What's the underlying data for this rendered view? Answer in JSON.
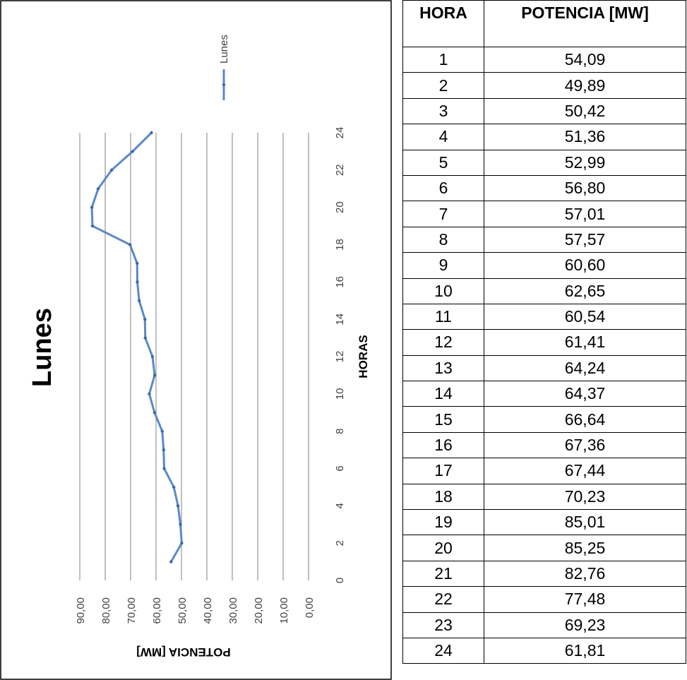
{
  "chart_data": {
    "type": "line",
    "title": "Lunes",
    "xlabel": "HORAS",
    "ylabel": "POTENCIA [MW]",
    "xlim": [
      0,
      24
    ],
    "ylim": [
      0,
      90
    ],
    "x_ticks": [
      "0",
      "2",
      "4",
      "6",
      "8",
      "10",
      "12",
      "14",
      "16",
      "18",
      "20",
      "22",
      "24"
    ],
    "y_ticks": [
      "0,00",
      "10,00",
      "20,00",
      "30,00",
      "40,00",
      "50,00",
      "60,00",
      "70,00",
      "80,00",
      "90,00"
    ],
    "grid": true,
    "legend_position": "top-right",
    "series": [
      {
        "name": "Lunes",
        "color": "#5b8ac6",
        "x": [
          1,
          2,
          3,
          4,
          5,
          6,
          7,
          8,
          9,
          10,
          11,
          12,
          13,
          14,
          15,
          16,
          17,
          18,
          19,
          20,
          21,
          22,
          23,
          24
        ],
        "values": [
          54.09,
          49.89,
          50.42,
          51.36,
          52.99,
          56.8,
          57.01,
          57.57,
          60.6,
          62.65,
          60.54,
          61.41,
          64.24,
          64.37,
          66.64,
          67.36,
          67.44,
          70.23,
          85.01,
          85.25,
          82.76,
          77.48,
          69.23,
          61.81
        ]
      }
    ]
  },
  "table": {
    "headers": [
      "HORA",
      "POTENCIA [MW]"
    ],
    "rows": [
      [
        "1",
        "54,09"
      ],
      [
        "2",
        "49,89"
      ],
      [
        "3",
        "50,42"
      ],
      [
        "4",
        "51,36"
      ],
      [
        "5",
        "52,99"
      ],
      [
        "6",
        "56,80"
      ],
      [
        "7",
        "57,01"
      ],
      [
        "8",
        "57,57"
      ],
      [
        "9",
        "60,60"
      ],
      [
        "10",
        "62,65"
      ],
      [
        "11",
        "60,54"
      ],
      [
        "12",
        "61,41"
      ],
      [
        "13",
        "64,24"
      ],
      [
        "14",
        "64,37"
      ],
      [
        "15",
        "66,64"
      ],
      [
        "16",
        "67,36"
      ],
      [
        "17",
        "67,44"
      ],
      [
        "18",
        "70,23"
      ],
      [
        "19",
        "85,01"
      ],
      [
        "20",
        "85,25"
      ],
      [
        "21",
        "82,76"
      ],
      [
        "22",
        "77,48"
      ],
      [
        "23",
        "69,23"
      ],
      [
        "24",
        "61,81"
      ]
    ]
  }
}
